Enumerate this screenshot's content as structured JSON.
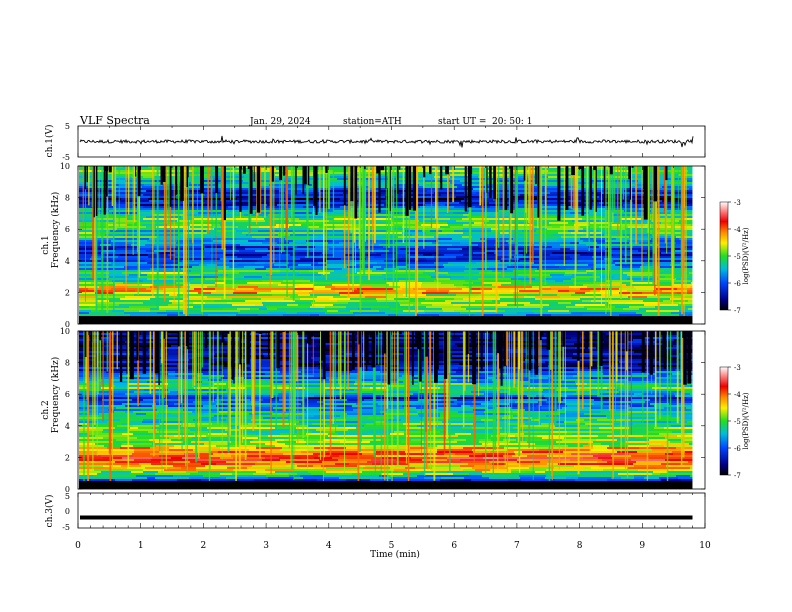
{
  "header": {
    "title": "VLF  Spectra",
    "date": "Jan. 29, 2024",
    "station": "station=ATH",
    "start_label": "start  UT  =",
    "start_time": "20: 50: 1"
  },
  "chart_data": [
    {
      "id": "ch1-waveform",
      "type": "line",
      "ylabel": "ch.1(V)",
      "ylim": [
        -5,
        5
      ],
      "yticks": [
        "5",
        "-5"
      ],
      "xlim": [
        0,
        10
      ],
      "description_of_series": "",
      "baseline_v": 0.0,
      "amplitude_v": 1.0
    },
    {
      "id": "ch1-spectrogram",
      "type": "heatmap",
      "ylabel_top": "ch.1",
      "ylabel": "Frequency  (kHz)",
      "ylim": [
        0,
        10
      ],
      "yticks": [
        "10",
        "8",
        "6",
        "4",
        "2",
        "0"
      ],
      "xlim": [
        0,
        9.8
      ],
      "colorbar": {
        "label": "log(PSD)(V²/Hz)",
        "range": [
          -7,
          -3
        ],
        "ticks": [
          "-3",
          "-4",
          "-5",
          "-6",
          "-7"
        ],
        "colors": [
          "#000000",
          "#0000cc",
          "#0066ff",
          "#00cccc",
          "#33dd33",
          "#ffff00",
          "#ff8800",
          "#ff0000",
          "#ffffff"
        ]
      },
      "bands_khz": [
        {
          "f": 0.3,
          "level": -7.0
        },
        {
          "f": 0.6,
          "level": -5.4
        },
        {
          "f": 1.4,
          "level": -5.0
        },
        {
          "f": 2.2,
          "level": -4.3
        },
        {
          "f": 2.6,
          "level": -4.9
        },
        {
          "f": 3.3,
          "level": -5.2
        },
        {
          "f": 4.5,
          "level": -6.4
        },
        {
          "f": 5.5,
          "level": -5.3
        },
        {
          "f": 6.5,
          "level": -4.9
        },
        {
          "f": 8.0,
          "level": -6.5
        },
        {
          "f": 9.5,
          "level": -5.0
        }
      ]
    },
    {
      "id": "ch2-spectrogram",
      "type": "heatmap",
      "ylabel_top": "ch.2",
      "ylabel": "Frequency  (kHz)",
      "ylim": [
        0,
        10
      ],
      "yticks": [
        "10",
        "8",
        "6",
        "4",
        "2",
        "0"
      ],
      "xlim": [
        0,
        9.8
      ],
      "colorbar": {
        "label": "log(PSD)(V²/Hz)",
        "range": [
          -7,
          -3
        ],
        "ticks": [
          "-3",
          "-4",
          "-5",
          "-6",
          "-7"
        ]
      },
      "bands_khz": [
        {
          "f": 0.3,
          "level": -7.0
        },
        {
          "f": 1.0,
          "level": -5.0
        },
        {
          "f": 2.0,
          "level": -3.6
        },
        {
          "f": 2.8,
          "level": -4.6
        },
        {
          "f": 3.6,
          "level": -5.0
        },
        {
          "f": 4.6,
          "level": -5.1
        },
        {
          "f": 5.8,
          "level": -6.2
        },
        {
          "f": 6.5,
          "level": -5.0
        },
        {
          "f": 8.0,
          "level": -6.6
        }
      ]
    },
    {
      "id": "ch3-waveform",
      "type": "line",
      "ylabel": "ch.3(V)",
      "ylim": [
        -5,
        5
      ],
      "yticks": [
        "5",
        "0",
        "-5"
      ],
      "xlim": [
        0,
        9.8
      ],
      "baseline_v": -2.0
    }
  ],
  "xaxis": {
    "label": "Time  (min)",
    "ticks": [
      "0",
      "1",
      "2",
      "3",
      "4",
      "5",
      "6",
      "7",
      "8",
      "9",
      "10"
    ]
  }
}
